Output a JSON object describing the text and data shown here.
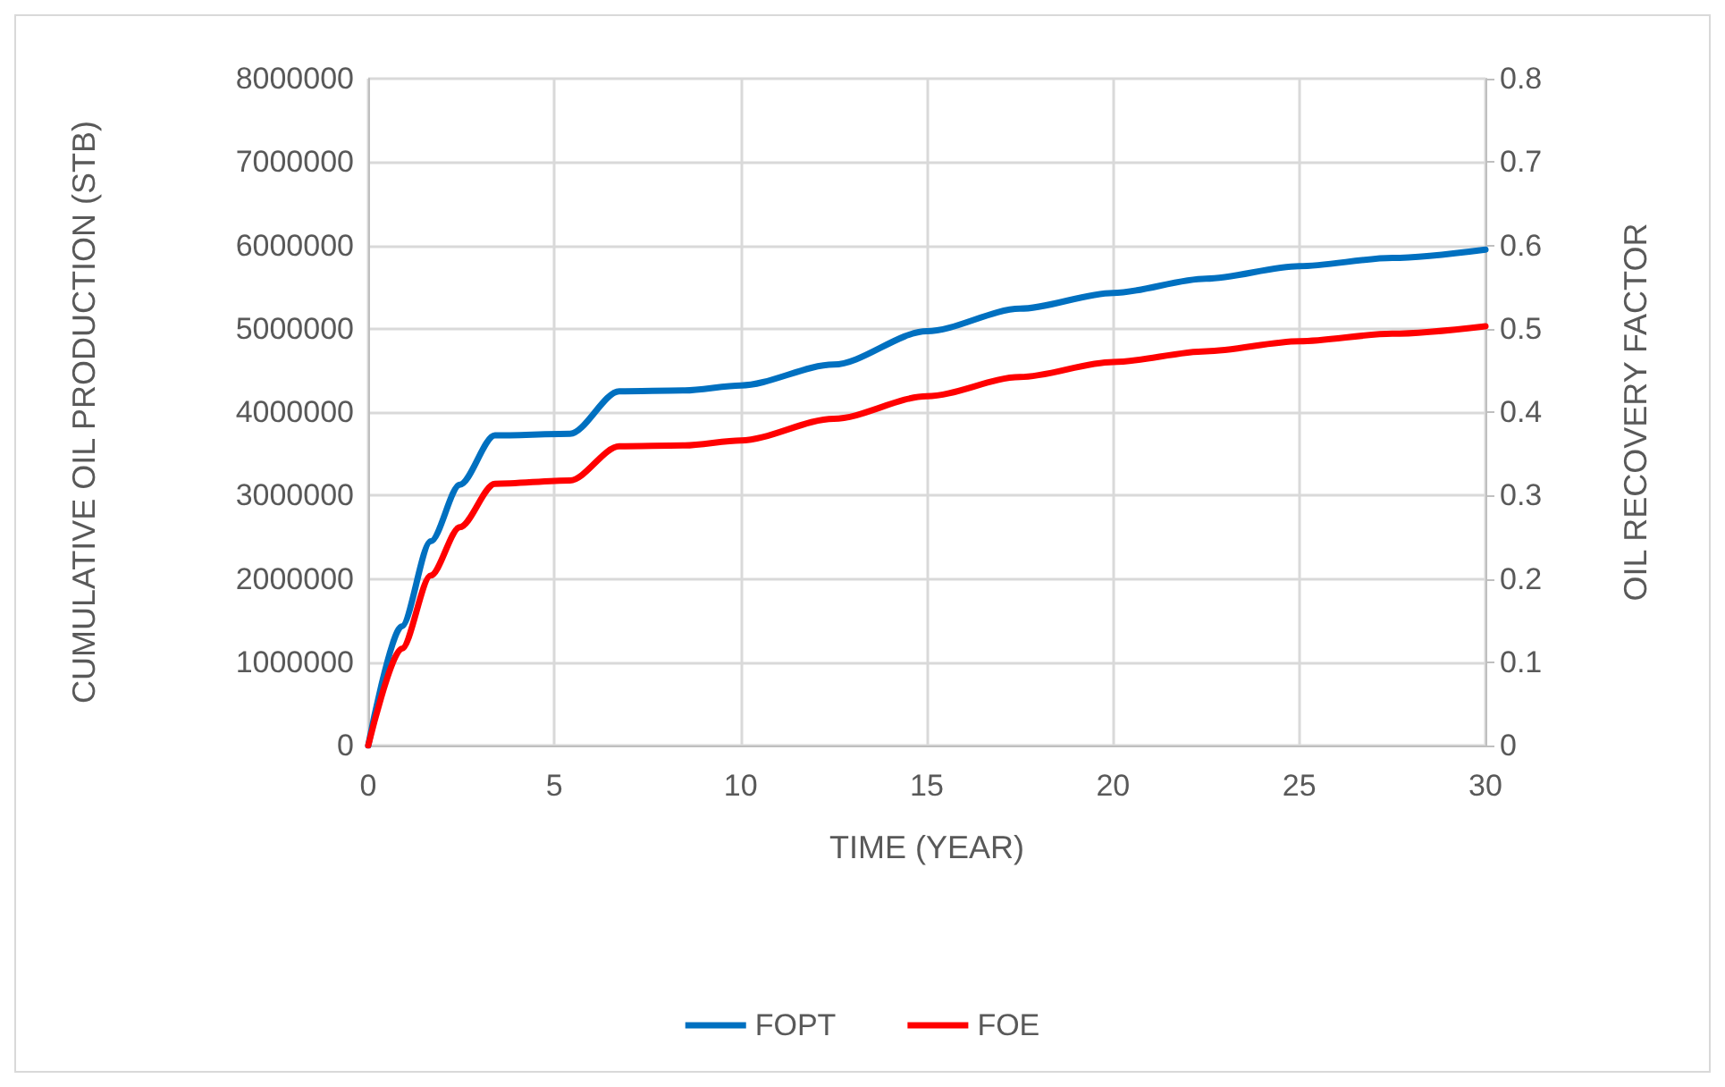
{
  "chart_data": {
    "type": "line",
    "xlabel": "TIME (YEAR)",
    "ylabel": "CUMULATIVE OIL PRODUCTION (STB)",
    "y2label": "OIL RECOVERY FACTOR",
    "xlim": [
      0,
      30
    ],
    "xticks": [
      0,
      5,
      10,
      15,
      20,
      25,
      30
    ],
    "ylim": [
      0,
      8000000
    ],
    "yticks": [
      0,
      1000000,
      2000000,
      3000000,
      4000000,
      5000000,
      6000000,
      7000000,
      8000000
    ],
    "y2lim": [
      0,
      0.8
    ],
    "y2ticks": [
      0,
      0.1,
      0.2,
      0.3,
      0.4,
      0.5,
      0.6,
      0.7,
      0.8
    ],
    "grid": true,
    "legend": "bottom",
    "marker": "none",
    "line_style": "solid",
    "series": [
      {
        "name": "FOPT",
        "color": "#0070c0",
        "x": [
          0,
          0.9,
          1.68,
          2.46,
          3.4,
          5.42,
          6.74,
          8.5,
          10,
          12.5,
          15,
          17.5,
          20,
          22.5,
          25,
          27.5,
          30
        ],
        "values": [
          0,
          1430000,
          2450000,
          3130000,
          3720000,
          3740000,
          4250000,
          4260000,
          4320000,
          4570000,
          4970000,
          5240000,
          5430000,
          5600000,
          5750000,
          5850000,
          5950000
        ]
      },
      {
        "name": "FOE",
        "color": "#ff0000",
        "axis": "y2",
        "x": [
          0,
          0.9,
          1.68,
          2.46,
          3.4,
          5.42,
          6.74,
          8.5,
          10,
          12.5,
          15,
          17.5,
          20,
          22.5,
          25,
          27.5,
          30
        ],
        "values": [
          0,
          0.116,
          0.204,
          0.262,
          0.314,
          0.318,
          0.359,
          0.36,
          0.366,
          0.392,
          0.419,
          0.442,
          0.46,
          0.473,
          0.485,
          0.494,
          0.503
        ]
      }
    ]
  }
}
